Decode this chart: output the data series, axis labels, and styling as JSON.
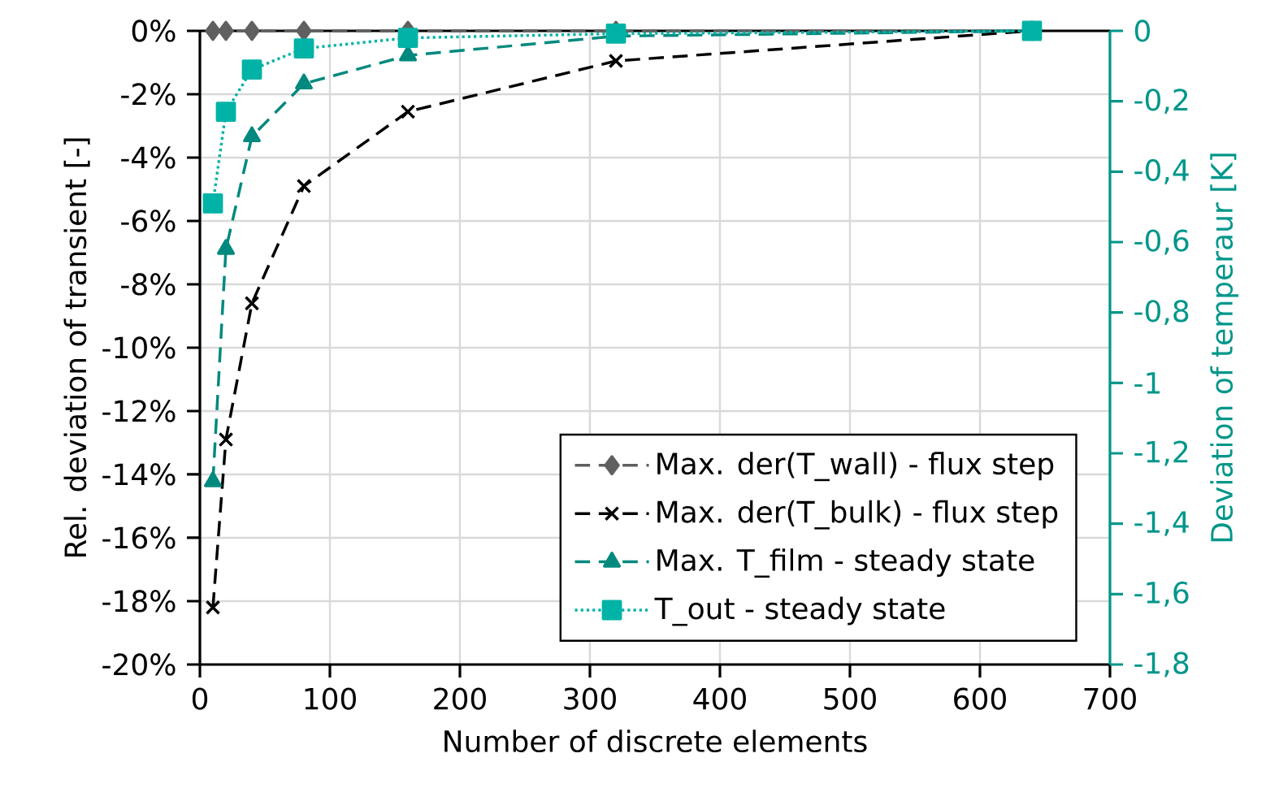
{
  "chart_data": {
    "type": "line",
    "xlabel": "Number of discrete elements",
    "ylabel": "Rel. deviation of transient [-]",
    "y2label": "Deviation of temperaur [K]",
    "xlim": [
      0,
      700
    ],
    "xticks": [
      0,
      100,
      200,
      300,
      400,
      500,
      600,
      700
    ],
    "ylim": [
      -20,
      0
    ],
    "yticks": [
      {
        "value": -20,
        "label": "-20%"
      },
      {
        "value": -18,
        "label": "-18%"
      },
      {
        "value": -16,
        "label": "-16%"
      },
      {
        "value": -14,
        "label": "-14%"
      },
      {
        "value": -12,
        "label": "-12%"
      },
      {
        "value": -10,
        "label": "-10%"
      },
      {
        "value": -8,
        "label": "-8%"
      },
      {
        "value": -6,
        "label": "-6%"
      },
      {
        "value": -4,
        "label": "-4%"
      },
      {
        "value": -2,
        "label": "-2%"
      },
      {
        "value": 0,
        "label": "0%"
      }
    ],
    "y2lim": [
      -1.8,
      0
    ],
    "y2ticks": [
      {
        "value": -1.8,
        "label": "-1,8"
      },
      {
        "value": -1.6,
        "label": "-1,6"
      },
      {
        "value": -1.4,
        "label": "-1,4"
      },
      {
        "value": -1.2,
        "label": "-1,2"
      },
      {
        "value": -1,
        "label": "-1"
      },
      {
        "value": -0.8,
        "label": "-0,8"
      },
      {
        "value": -0.6,
        "label": "-0,6"
      },
      {
        "value": -0.4,
        "label": "-0,4"
      },
      {
        "value": -0.2,
        "label": "-0,2"
      },
      0
    ],
    "grid": true,
    "legend": "bottom right",
    "series": [
      {
        "name": "Max. der(T_wall) - flux step",
        "color": "#606060",
        "marker": "diamond",
        "line_style": "dashed",
        "x": [
          10,
          20,
          40,
          80,
          160,
          320,
          640
        ],
        "values": [
          0,
          0,
          0,
          0,
          0,
          0,
          0
        ]
      },
      {
        "name": "Max. der(T_bulk) - flux step",
        "color": "#000000",
        "marker": "cross",
        "line_style": "dashed",
        "x": [
          10,
          20,
          40,
          80,
          160,
          320,
          640
        ],
        "values": [
          -18.2,
          -12.9,
          -8.6,
          -4.9,
          -2.55,
          -0.95,
          0
        ]
      },
      {
        "name": "Max. T_film - steady state",
        "color": "#00897e",
        "marker": "triangle",
        "line_style": "dashed",
        "axis": "y2",
        "x": [
          10,
          20,
          40,
          80,
          160,
          320,
          640
        ],
        "values": [
          -1.28,
          -0.62,
          -0.3,
          -0.15,
          -0.07,
          -0.015,
          0
        ]
      },
      {
        "name": "T_out - steady state",
        "color": "#00b3a6",
        "marker": "square",
        "line_style": "dotted",
        "axis": "y2",
        "x": [
          10,
          20,
          40,
          80,
          160,
          320,
          640
        ],
        "values": [
          -0.49,
          -0.23,
          -0.11,
          -0.05,
          -0.02,
          -0.008,
          0
        ]
      }
    ]
  }
}
